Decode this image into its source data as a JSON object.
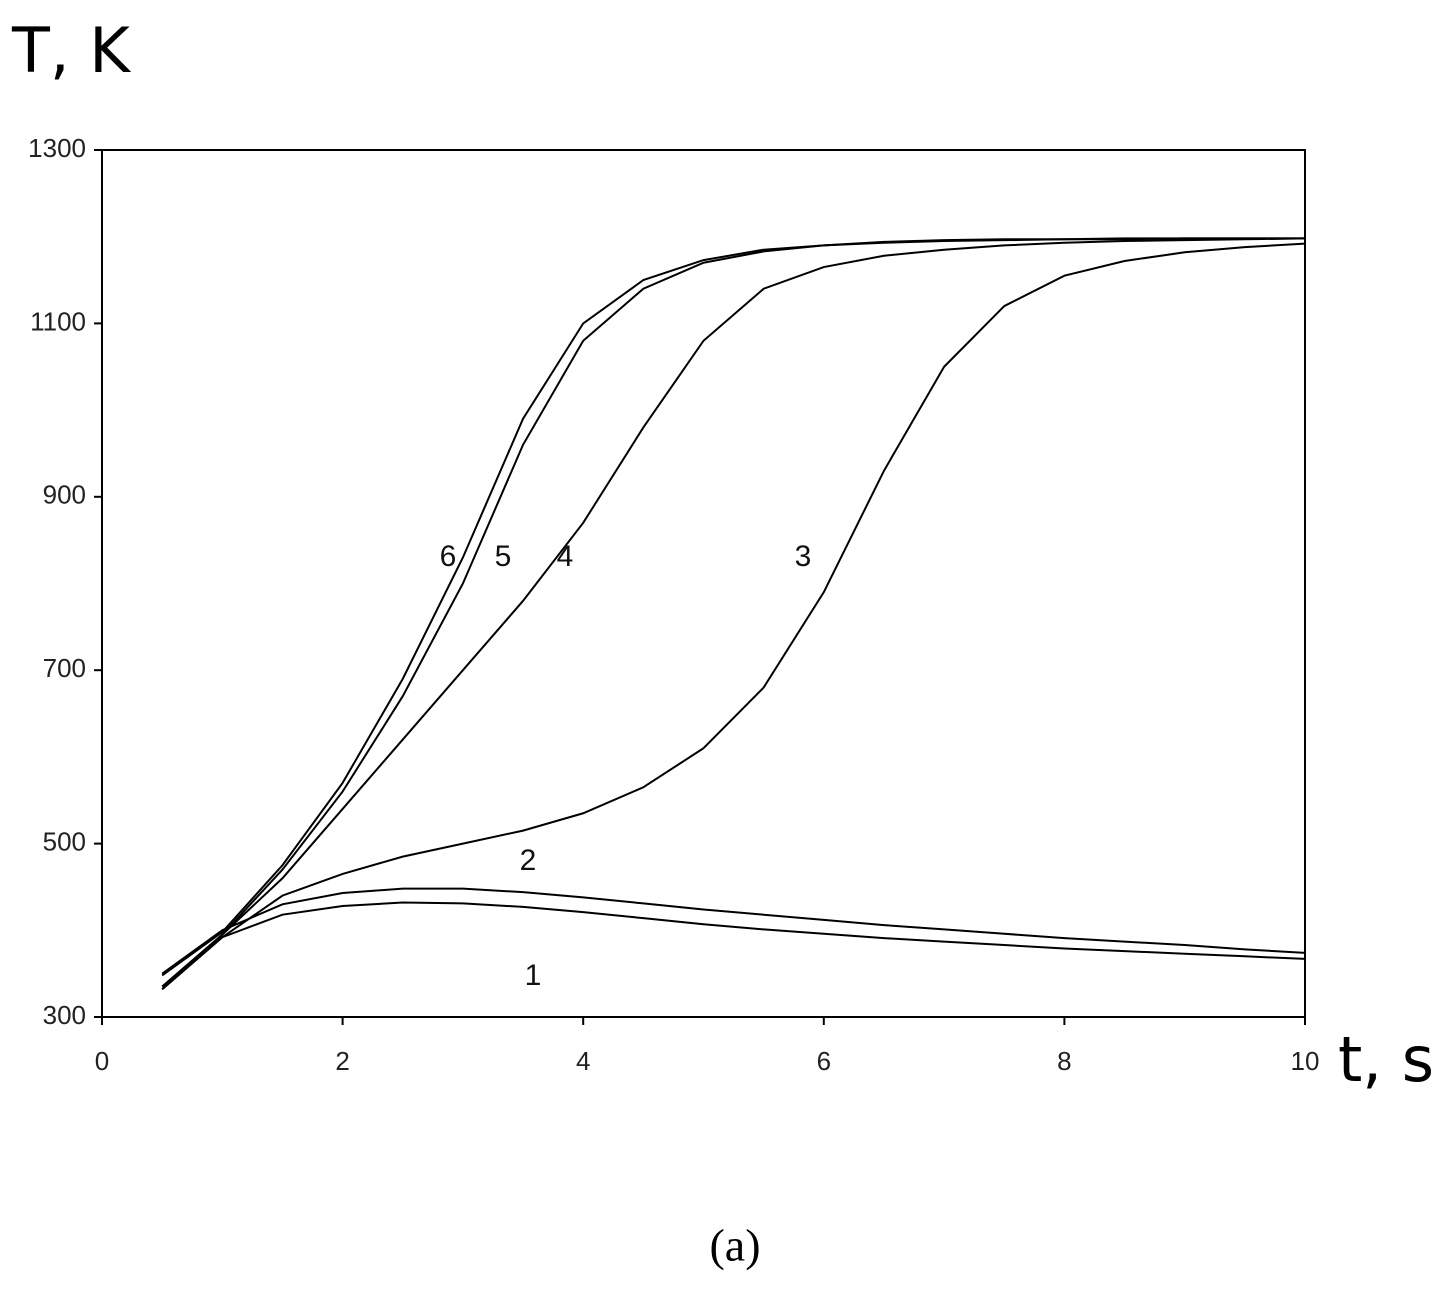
{
  "chart_data": {
    "type": "line",
    "y_label": "T, K",
    "x_label": "t, s",
    "caption": "(a)",
    "x": [
      0.5,
      1,
      1.5,
      2,
      2.5,
      3,
      3.5,
      4,
      4.5,
      5,
      5.5,
      6,
      6.5,
      7,
      7.5,
      8,
      8.5,
      9,
      9.5,
      10
    ],
    "series": [
      {
        "name": "1",
        "color": "#000000",
        "values": [
          332,
          392,
          418,
          428,
          432,
          431,
          427,
          421,
          414,
          407,
          401,
          396,
          391,
          387,
          383,
          379,
          376,
          373,
          370,
          367
        ]
      },
      {
        "name": "2",
        "color": "#000000",
        "values": [
          350,
          400,
          430,
          443,
          448,
          448,
          444,
          438,
          431,
          424,
          418,
          412,
          406,
          401,
          396,
          391,
          387,
          383,
          378,
          374
        ]
      },
      {
        "name": "3",
        "color": "#000000",
        "values": [
          332,
          392,
          440,
          465,
          485,
          500,
          515,
          535,
          565,
          610,
          680,
          790,
          930,
          1050,
          1120,
          1155,
          1172,
          1182,
          1188,
          1192
        ]
      },
      {
        "name": "4",
        "color": "#000000",
        "values": [
          335,
          395,
          460,
          540,
          620,
          700,
          780,
          870,
          980,
          1080,
          1140,
          1165,
          1178,
          1185,
          1190,
          1193,
          1195,
          1196,
          1197,
          1198
        ]
      },
      {
        "name": "5",
        "color": "#000000",
        "values": [
          335,
          395,
          470,
          560,
          670,
          800,
          960,
          1080,
          1140,
          1170,
          1183,
          1190,
          1193,
          1195,
          1196,
          1197,
          1197,
          1198,
          1198,
          1198
        ]
      },
      {
        "name": "6",
        "color": "#000000",
        "values": [
          348,
          398,
          475,
          570,
          690,
          830,
          990,
          1100,
          1150,
          1173,
          1185,
          1190,
          1194,
          1196,
          1197,
          1197,
          1198,
          1198,
          1198,
          1198
        ]
      }
    ],
    "xlim": [
      0,
      10
    ],
    "ylim": [
      300,
      1300
    ],
    "xticks": [
      0,
      2,
      4,
      6,
      8,
      10
    ],
    "yticks": [
      300,
      500,
      700,
      900,
      1100,
      1300
    ]
  }
}
